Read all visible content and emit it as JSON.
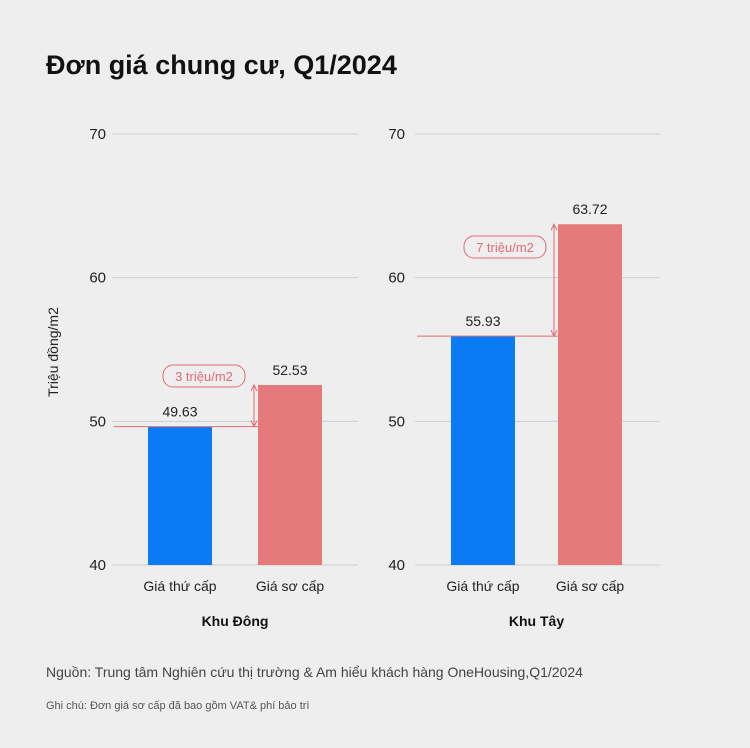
{
  "title": "Đơn giá chung cư, Q1/2024",
  "chart_data": {
    "type": "bar",
    "ylabel": "Triệu đồng/m2",
    "ylim": [
      40,
      70
    ],
    "yticks": [
      40,
      50,
      60,
      70
    ],
    "categories": [
      "Giá thứ cấp",
      "Giá sơ cấp"
    ],
    "colors": {
      "secondary": "#0a7bf4",
      "primary": "#e57a7b",
      "annotation": "#e06b75"
    },
    "panels": [
      {
        "xlabel": "Khu Đông",
        "values": [
          49.63,
          52.53
        ],
        "labels": [
          "49.63",
          "52.53"
        ],
        "annotation": "3 triệu/m2"
      },
      {
        "xlabel": "Khu Tây",
        "values": [
          55.93,
          63.72
        ],
        "labels": [
          "55.93",
          "63.72"
        ],
        "annotation": "7 triệu/m2"
      }
    ]
  },
  "footer": {
    "source": "Nguồn: Trung tâm Nghiên cứu thị trường & Am hiểu khách hàng OneHousing,Q1/2024",
    "note": "Ghi chú: Đơn giá sơ cấp đã bao gồm VAT& phí bảo trì"
  }
}
